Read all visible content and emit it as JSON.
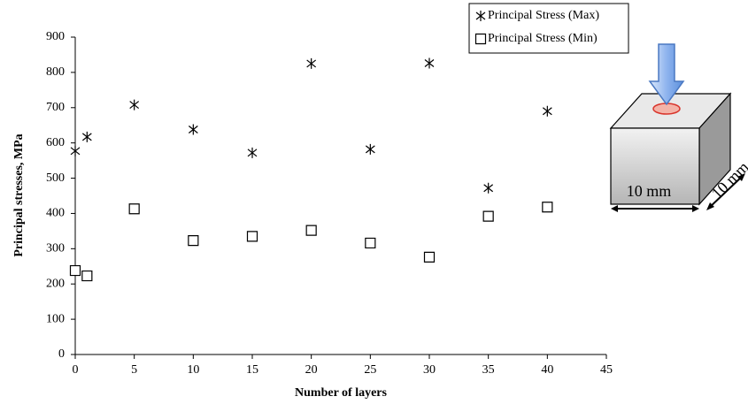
{
  "chart_data": {
    "type": "scatter",
    "xlabel": "Number of layers",
    "ylabel": "Principal stresses, MPa",
    "xlim": [
      0,
      45
    ],
    "xticks": [
      0,
      5,
      10,
      15,
      20,
      25,
      30,
      35,
      40,
      45
    ],
    "ylim": [
      0,
      900
    ],
    "yticks": [
      0,
      100,
      200,
      300,
      400,
      500,
      600,
      700,
      800,
      900
    ],
    "grid": false,
    "legend": "top-right",
    "series": [
      {
        "name": "Principal Stress (Max)",
        "color": "#000000",
        "marker": "asterisk",
        "x": [
          0,
          1,
          5,
          10,
          15,
          20,
          25,
          30,
          35,
          40
        ],
        "values": [
          577,
          617,
          708,
          638,
          572,
          825,
          582,
          826,
          472,
          690
        ]
      },
      {
        "name": "Principal Stress (Min)",
        "color": "#000000",
        "marker": "square",
        "x": [
          0,
          1,
          5,
          10,
          15,
          20,
          25,
          30,
          35,
          40
        ],
        "values": [
          238,
          223,
          413,
          323,
          335,
          352,
          316,
          276,
          392,
          418
        ]
      }
    ],
    "annotations": [
      "10 mm",
      "10 mm"
    ]
  }
}
